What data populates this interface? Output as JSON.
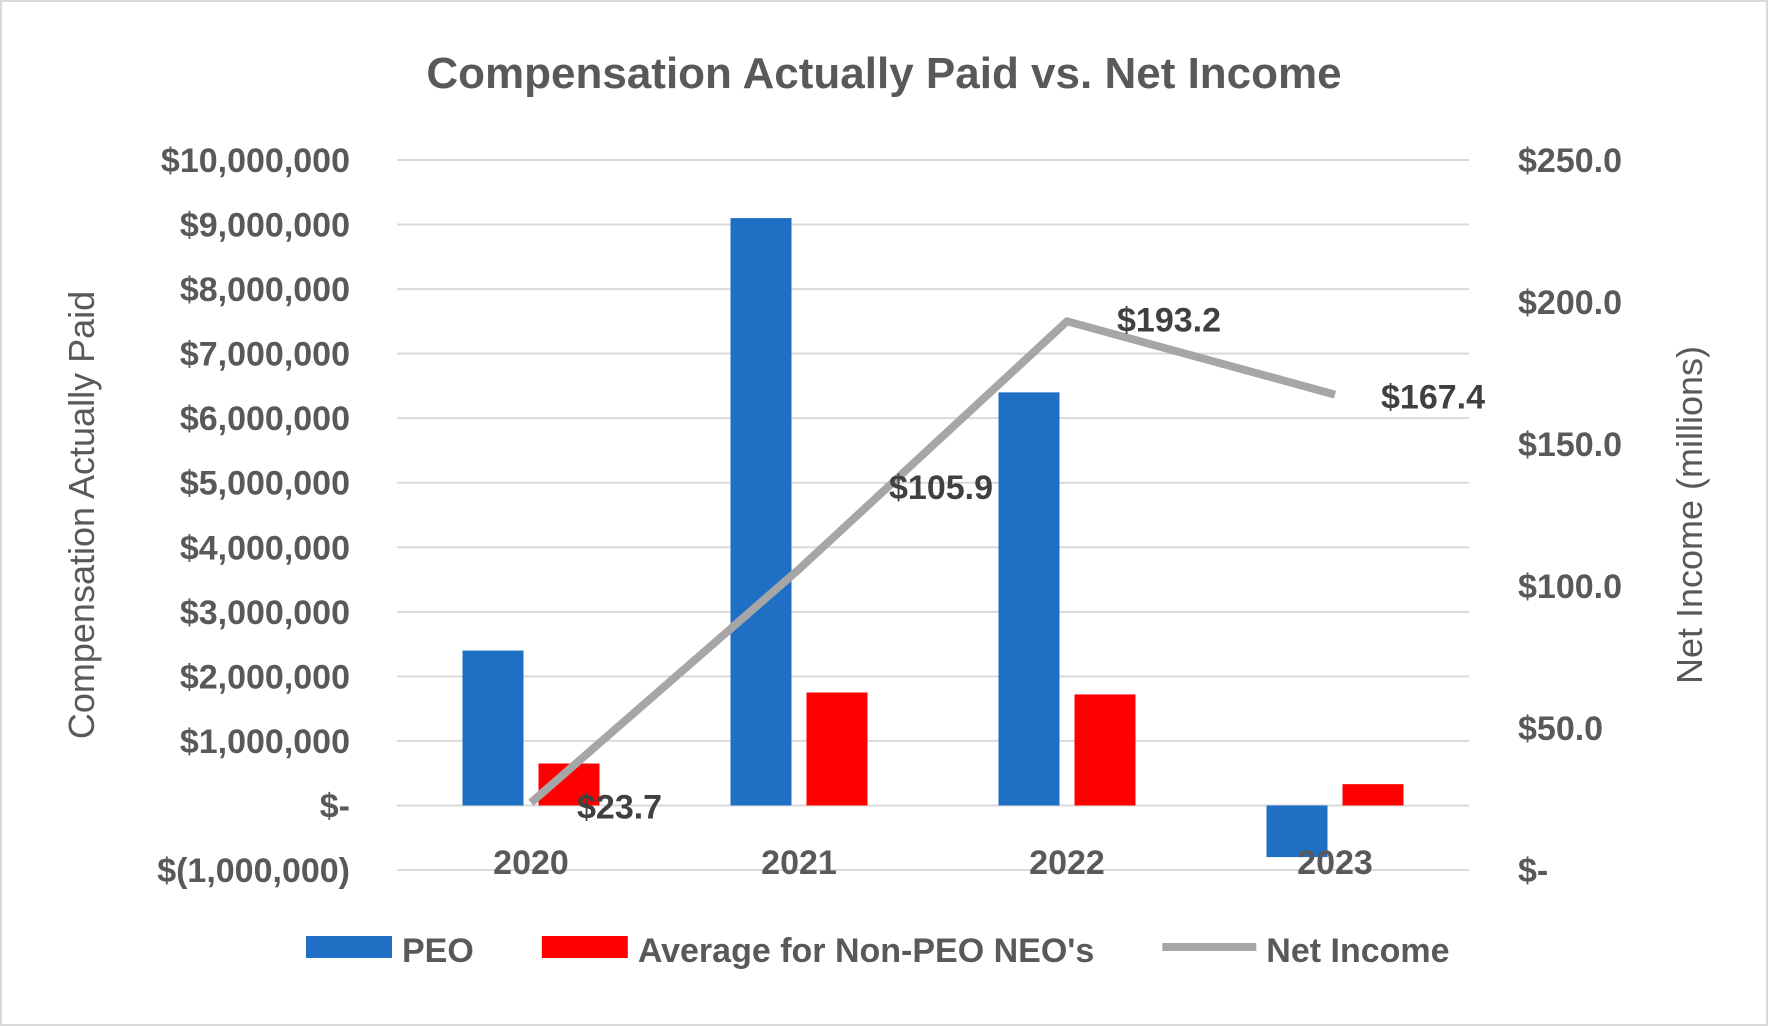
{
  "chart_data": {
    "type": "bar",
    "title": "Compensation Actually Paid vs. Net Income",
    "categories": [
      "2020",
      "2021",
      "2022",
      "2023"
    ],
    "ylabel": "Compensation Actually Paid",
    "ylim": [
      -1000000,
      10000000
    ],
    "y_ticks": [
      "$10,000,000",
      "$9,000,000",
      "$8,000,000",
      "$7,000,000",
      "$6,000,000",
      "$5,000,000",
      "$4,000,000",
      "$3,000,000",
      "$2,000,000",
      "$1,000,000",
      "$-",
      "$(1,000,000)"
    ],
    "y2label": "Net Income (millions)",
    "y2lim": [
      0,
      250
    ],
    "y2_ticks": [
      "$250.0",
      "$200.0",
      "$150.0",
      "$100.0",
      "$50.0",
      "$-"
    ],
    "grid": true,
    "legend_position": "bottom",
    "series": [
      {
        "name": "PEO",
        "type": "bar",
        "axis": "left",
        "color": "#1f6fc5",
        "values": [
          2400000,
          9100000,
          6400000,
          -800000
        ]
      },
      {
        "name": "Average for Non-PEO NEO's",
        "type": "bar",
        "axis": "left",
        "color": "#ff0000",
        "values": [
          650000,
          1750000,
          1720000,
          330000
        ]
      },
      {
        "name": "Net Income",
        "type": "line",
        "axis": "right",
        "color": "#a6a6a6",
        "values": [
          23.7,
          105.9,
          193.2,
          167.4
        ],
        "data_labels": [
          "$23.7",
          "$105.9",
          "$193.2",
          "$167.4"
        ]
      }
    ]
  }
}
